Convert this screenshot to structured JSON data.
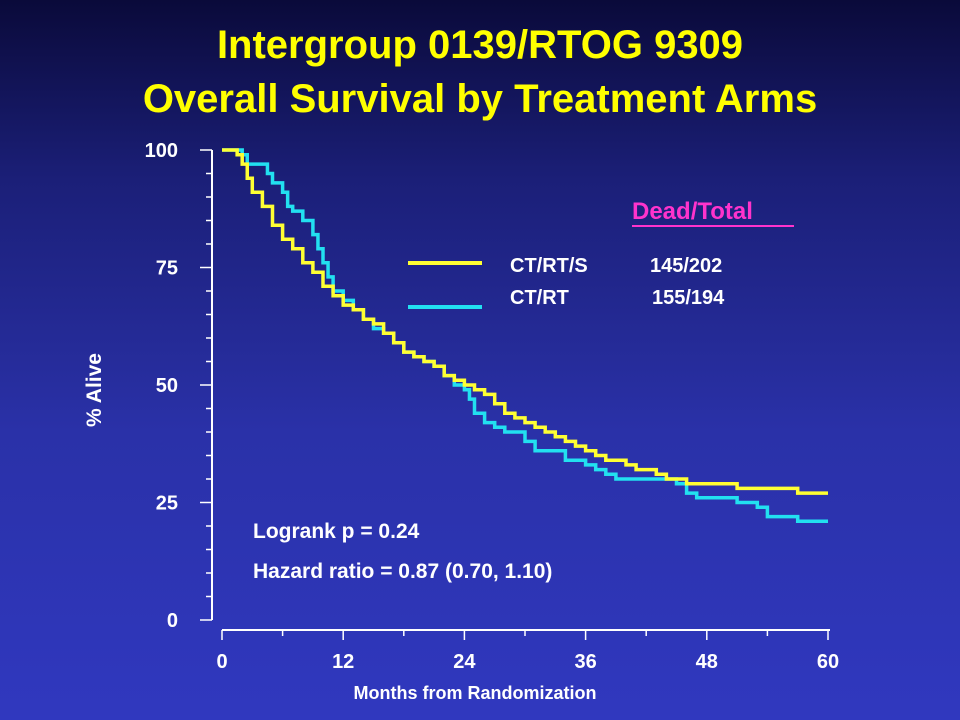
{
  "slide": {
    "title_line1": "Intergroup 0139/RTOG 9309",
    "title_line2": "Overall Survival by Treatment Arms"
  },
  "colors": {
    "title": "#ffff00",
    "series_ctrts": "#ffff33",
    "series_ctrt": "#22e0f0",
    "legend_header": "#ff33cc",
    "axis": "#ffffff"
  },
  "chart_data": {
    "type": "line",
    "xlabel": "Months from Randomization",
    "ylabel": "% Alive",
    "xlim": [
      0,
      60
    ],
    "ylim": [
      0,
      100
    ],
    "xticks": [
      0,
      12,
      24,
      36,
      48,
      60
    ],
    "yticks": [
      0,
      25,
      50,
      75,
      100
    ],
    "grid": false,
    "legend": {
      "header": "Dead/Total",
      "placement": "top-right",
      "entries": [
        {
          "name": "CT/RT/S",
          "value": "145/202"
        },
        {
          "name": "CT/RT",
          "value": "155/194"
        }
      ]
    },
    "annotations": [
      "Logrank p = 0.24",
      "Hazard ratio = 0.87 (0.70, 1.10)"
    ],
    "series": [
      {
        "name": "CT/RT/S",
        "points": [
          [
            0,
            100
          ],
          [
            1,
            100
          ],
          [
            1.5,
            99
          ],
          [
            2,
            97
          ],
          [
            2.5,
            94
          ],
          [
            3,
            91
          ],
          [
            4,
            88
          ],
          [
            5,
            84
          ],
          [
            6,
            81
          ],
          [
            7,
            79
          ],
          [
            8,
            76
          ],
          [
            9,
            74
          ],
          [
            10,
            71
          ],
          [
            11,
            69
          ],
          [
            12,
            67
          ],
          [
            13,
            66
          ],
          [
            14,
            64
          ],
          [
            15,
            63
          ],
          [
            16,
            61
          ],
          [
            17,
            59
          ],
          [
            18,
            57
          ],
          [
            19,
            56
          ],
          [
            20,
            55
          ],
          [
            21,
            54
          ],
          [
            22,
            52
          ],
          [
            23,
            51
          ],
          [
            24,
            50
          ],
          [
            25,
            49
          ],
          [
            26,
            48
          ],
          [
            27,
            46
          ],
          [
            28,
            44
          ],
          [
            29,
            43
          ],
          [
            30,
            42
          ],
          [
            31,
            41
          ],
          [
            32,
            40
          ],
          [
            33,
            39
          ],
          [
            34,
            38
          ],
          [
            35,
            37
          ],
          [
            36,
            36
          ],
          [
            37,
            35
          ],
          [
            38,
            34
          ],
          [
            39,
            34
          ],
          [
            40,
            33
          ],
          [
            41,
            32
          ],
          [
            42,
            32
          ],
          [
            43,
            31
          ],
          [
            44,
            30
          ],
          [
            45,
            30
          ],
          [
            46,
            29
          ],
          [
            47,
            29
          ],
          [
            48,
            29
          ],
          [
            50,
            29
          ],
          [
            51,
            28
          ],
          [
            53,
            28
          ],
          [
            54,
            28
          ],
          [
            55,
            28
          ],
          [
            57,
            27
          ],
          [
            60,
            27
          ]
        ]
      },
      {
        "name": "CT/RT",
        "points": [
          [
            0,
            100
          ],
          [
            1.5,
            100
          ],
          [
            2,
            99
          ],
          [
            2.5,
            97
          ],
          [
            4,
            97
          ],
          [
            4.5,
            95
          ],
          [
            5,
            93
          ],
          [
            6,
            91
          ],
          [
            6.5,
            88
          ],
          [
            7,
            87
          ],
          [
            8,
            85
          ],
          [
            9,
            82
          ],
          [
            9.5,
            79
          ],
          [
            10,
            76
          ],
          [
            10.5,
            73
          ],
          [
            11,
            70
          ],
          [
            12,
            68
          ],
          [
            13,
            66
          ],
          [
            14,
            64
          ],
          [
            15,
            62
          ],
          [
            16,
            61
          ],
          [
            17,
            59
          ],
          [
            18,
            57
          ],
          [
            19,
            56
          ],
          [
            20,
            55
          ],
          [
            21,
            54
          ],
          [
            22,
            52
          ],
          [
            23,
            50
          ],
          [
            24,
            49
          ],
          [
            24.5,
            47
          ],
          [
            25,
            44
          ],
          [
            26,
            42
          ],
          [
            27,
            41
          ],
          [
            28,
            40
          ],
          [
            29,
            40
          ],
          [
            30,
            38
          ],
          [
            31,
            36
          ],
          [
            32,
            36
          ],
          [
            33,
            36
          ],
          [
            34,
            34
          ],
          [
            35,
            34
          ],
          [
            36,
            33
          ],
          [
            37,
            32
          ],
          [
            38,
            31
          ],
          [
            39,
            30
          ],
          [
            40,
            30
          ],
          [
            44,
            30
          ],
          [
            45,
            29
          ],
          [
            46,
            27
          ],
          [
            47,
            26
          ],
          [
            48,
            26
          ],
          [
            50,
            26
          ],
          [
            51,
            25
          ],
          [
            52,
            25
          ],
          [
            53,
            24
          ],
          [
            54,
            22
          ],
          [
            55,
            22
          ],
          [
            56,
            22
          ],
          [
            57,
            21
          ],
          [
            58,
            21
          ],
          [
            60,
            21
          ]
        ]
      }
    ]
  }
}
